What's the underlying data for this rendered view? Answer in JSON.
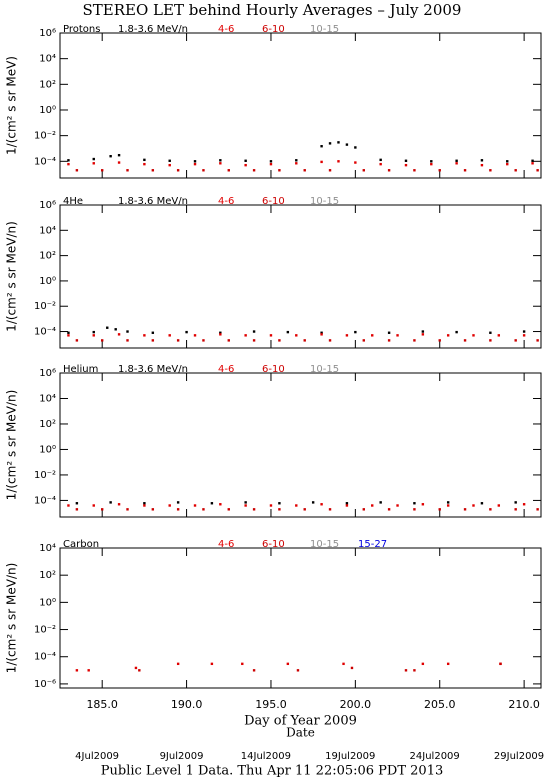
{
  "title": "STEREO LET behind Hourly Averages – July 2009",
  "footer": "Public Level 1 Data. Thu Apr 11 22:05:06 PDT 2013",
  "chart_data": [
    {
      "type": "scatter",
      "title": "Protons",
      "ylabel": "1/(cm² s sr MeV)",
      "log_y": true,
      "xlim": [
        182.5,
        211
      ],
      "ylim": [
        5e-06,
        1000000
      ],
      "yticks": [
        {
          "value": 1000000,
          "label": "10⁶"
        },
        {
          "value": 10000,
          "label": "10⁴"
        },
        {
          "value": 100,
          "label": "10²"
        },
        {
          "value": 1,
          "label": "10⁰"
        },
        {
          "value": 0.01,
          "label": "10⁻²"
        },
        {
          "value": 0.0001,
          "label": "10⁻⁴"
        }
      ],
      "xticks": [
        185,
        190,
        195,
        200,
        205,
        210
      ],
      "series": [
        {
          "name": "1.8-3.6 MeV/n",
          "color": "#000000",
          "x": [
            183,
            184.5,
            185.5,
            186,
            187.5,
            189,
            190.5,
            192,
            193.5,
            195,
            196.5,
            198,
            198.5,
            199,
            199.5,
            200,
            201.5,
            203,
            204.5,
            206,
            207.5,
            209,
            210.5
          ],
          "values": [
            0.00012,
            0.00015,
            0.00025,
            0.0003,
            0.00013,
            0.00011,
            0.0001,
            0.00012,
            0.00011,
            0.0001,
            0.00012,
            0.0015,
            0.0025,
            0.003,
            0.002,
            0.0012,
            0.00013,
            0.00011,
            0.0001,
            0.00011,
            0.00012,
            0.0001,
            0.00011
          ]
        },
        {
          "name": "4-6",
          "color": "#e00000",
          "x": [
            183,
            184.5,
            186,
            187.5,
            189,
            190.5,
            192,
            193.5,
            195,
            196.5,
            198,
            199,
            200,
            201.5,
            203,
            204.5,
            206,
            207.5,
            209,
            210.5
          ],
          "values": [
            6e-05,
            7e-05,
            8e-05,
            6e-05,
            5e-05,
            6e-05,
            7e-05,
            5e-05,
            6e-05,
            7e-05,
            9e-05,
            0.0001,
            8e-05,
            6e-05,
            5e-05,
            6e-05,
            7e-05,
            5e-05,
            6e-05,
            7e-05
          ]
        },
        {
          "name": "6-10",
          "color": "#cc0000",
          "x": [
            183.5,
            185,
            186.5,
            188,
            189.5,
            191,
            192.5,
            194,
            195.5,
            197,
            198.5,
            200.5,
            202,
            203.5,
            205,
            206.5,
            208,
            209.5,
            210.8
          ],
          "values": [
            2e-05,
            2e-05,
            2e-05,
            2e-05,
            2e-05,
            2e-05,
            2e-05,
            2e-05,
            2e-05,
            2e-05,
            2e-05,
            2e-05,
            2e-05,
            2e-05,
            2e-05,
            2e-05,
            2e-05,
            2e-05,
            2e-05
          ]
        },
        {
          "name": "10-15",
          "color": "#909090",
          "x": [],
          "values": []
        }
      ]
    },
    {
      "type": "scatter",
      "title": "4He",
      "ylabel": "1/(cm² s sr MeV/n)",
      "log_y": true,
      "xlim": [
        182.5,
        211
      ],
      "ylim": [
        5e-06,
        1000000
      ],
      "yticks": [
        {
          "value": 1000000,
          "label": "10⁶"
        },
        {
          "value": 10000,
          "label": "10⁴"
        },
        {
          "value": 100,
          "label": "10²"
        },
        {
          "value": 1,
          "label": "10⁰"
        },
        {
          "value": 0.01,
          "label": "10⁻²"
        },
        {
          "value": 0.0001,
          "label": "10⁻⁴"
        }
      ],
      "xticks": [
        185,
        190,
        195,
        200,
        205,
        210
      ],
      "series": [
        {
          "name": "1.8-3.6 MeV/n",
          "color": "#000000",
          "x": [
            183,
            184.5,
            185.3,
            185.8,
            186.5,
            188,
            190,
            192,
            194,
            196,
            198,
            200,
            202,
            204,
            206,
            208,
            210
          ],
          "values": [
            8e-05,
            9e-05,
            0.0002,
            0.00015,
            0.0001,
            8e-05,
            9e-05,
            8e-05,
            0.0001,
            9e-05,
            8e-05,
            9e-05,
            8e-05,
            0.0001,
            9e-05,
            8e-05,
            0.0001
          ]
        },
        {
          "name": "4-6",
          "color": "#e00000",
          "x": [
            183,
            184.5,
            186,
            187.5,
            189,
            190.5,
            192,
            193.5,
            195,
            196.5,
            198,
            199.5,
            201,
            202.5,
            204,
            205.5,
            207,
            208.5,
            210
          ],
          "values": [
            5e-05,
            5e-05,
            6e-05,
            5e-05,
            5e-05,
            5e-05,
            6e-05,
            5e-05,
            5e-05,
            5e-05,
            6e-05,
            5e-05,
            5e-05,
            5e-05,
            6e-05,
            5e-05,
            5e-05,
            5e-05,
            5e-05
          ]
        },
        {
          "name": "6-10",
          "color": "#cc0000",
          "x": [
            183.5,
            185,
            186.5,
            188,
            189.5,
            191,
            192.5,
            194,
            195.5,
            197,
            198.5,
            200.5,
            202,
            203.5,
            205,
            206.5,
            208,
            209.5,
            210.8
          ],
          "values": [
            2e-05,
            2e-05,
            2e-05,
            2e-05,
            2e-05,
            2e-05,
            2e-05,
            2e-05,
            2e-05,
            2e-05,
            2e-05,
            2e-05,
            2e-05,
            2e-05,
            2e-05,
            2e-05,
            2e-05,
            2e-05,
            2e-05
          ]
        },
        {
          "name": "10-15",
          "color": "#909090",
          "x": [],
          "values": []
        }
      ]
    },
    {
      "type": "scatter",
      "title": "Helium",
      "ylabel": "1/(cm² s sr MeV/n)",
      "log_y": true,
      "xlim": [
        182.5,
        211
      ],
      "ylim": [
        5e-06,
        1000000
      ],
      "yticks": [
        {
          "value": 1000000,
          "label": "10⁶"
        },
        {
          "value": 10000,
          "label": "10⁴"
        },
        {
          "value": 100,
          "label": "10²"
        },
        {
          "value": 1,
          "label": "10⁰"
        },
        {
          "value": 0.01,
          "label": "10⁻²"
        },
        {
          "value": 0.0001,
          "label": "10⁻⁴"
        }
      ],
      "xticks": [
        185,
        190,
        195,
        200,
        205,
        210
      ],
      "series": [
        {
          "name": "1.8-3.6 MeV/n",
          "color": "#000000",
          "x": [
            183.5,
            185.5,
            187.5,
            189.5,
            191.5,
            193.5,
            195.5,
            197.5,
            199.5,
            201.5,
            203.5,
            205.5,
            207.5,
            209.5
          ],
          "values": [
            6e-05,
            7e-05,
            6e-05,
            7e-05,
            6e-05,
            7e-05,
            6e-05,
            7e-05,
            6e-05,
            7e-05,
            6e-05,
            7e-05,
            6e-05,
            7e-05
          ]
        },
        {
          "name": "4-6",
          "color": "#e00000",
          "x": [
            183,
            184.5,
            186,
            187.5,
            189,
            190.5,
            192,
            193.5,
            195,
            196.5,
            198,
            199.5,
            201,
            202.5,
            204,
            205.5,
            207,
            208.5,
            210
          ],
          "values": [
            4e-05,
            4e-05,
            5e-05,
            4e-05,
            4e-05,
            4e-05,
            5e-05,
            4e-05,
            4e-05,
            4e-05,
            5e-05,
            4e-05,
            4e-05,
            4e-05,
            5e-05,
            4e-05,
            4e-05,
            4e-05,
            5e-05
          ]
        },
        {
          "name": "6-10",
          "color": "#cc0000",
          "x": [
            183.5,
            185,
            186.5,
            188,
            189.5,
            191,
            192.5,
            194,
            195.5,
            197,
            198.5,
            200.5,
            202,
            203.5,
            205,
            206.5,
            208,
            209.5,
            210.8
          ],
          "values": [
            2e-05,
            2e-05,
            2e-05,
            2e-05,
            2e-05,
            2e-05,
            2e-05,
            2e-05,
            2e-05,
            2e-05,
            2e-05,
            2e-05,
            2e-05,
            2e-05,
            2e-05,
            2e-05,
            2e-05,
            2e-05,
            2e-05
          ]
        },
        {
          "name": "10-15",
          "color": "#909090",
          "x": [],
          "values": []
        }
      ]
    },
    {
      "type": "scatter",
      "title": "Carbon",
      "ylabel": "1/(cm² s sr MeV/n)",
      "log_y": true,
      "xlabel": "Day of Year 2009",
      "date_title": "Date",
      "xlim": [
        182.5,
        211
      ],
      "ylim": [
        5e-07,
        10000
      ],
      "yticks": [
        {
          "value": 10000,
          "label": "10⁴"
        },
        {
          "value": 100,
          "label": "10²"
        },
        {
          "value": 1,
          "label": "10⁰"
        },
        {
          "value": 0.01,
          "label": "10⁻²"
        },
        {
          "value": 0.0001,
          "label": "10⁻⁴"
        },
        {
          "value": 1e-06,
          "label": "10⁻⁶"
        }
      ],
      "xticks": [
        {
          "value": 185,
          "label": "185.0"
        },
        {
          "value": 190,
          "label": "190.0"
        },
        {
          "value": 195,
          "label": "195.0"
        },
        {
          "value": 200,
          "label": "200.0"
        },
        {
          "value": 205,
          "label": "205.0"
        },
        {
          "value": 210,
          "label": "210.0"
        }
      ],
      "date_ticks": [
        {
          "value": 184.7,
          "label": "4Jul2009"
        },
        {
          "value": 189.7,
          "label": "9Jul2009"
        },
        {
          "value": 194.7,
          "label": "14Jul2009"
        },
        {
          "value": 199.7,
          "label": "19Jul2009"
        },
        {
          "value": 204.7,
          "label": "24Jul2009"
        },
        {
          "value": 209.7,
          "label": "29Jul2009"
        }
      ],
      "series": [
        {
          "name": "4-6",
          "color": "#e00000",
          "x": [
            183.5,
            184.2,
            187,
            189.5,
            191.5,
            193.3,
            196,
            199.3,
            204,
            205.5,
            208.6
          ],
          "values": [
            1e-05,
            1e-05,
            1.5e-05,
            3e-05,
            3e-05,
            3e-05,
            3e-05,
            3e-05,
            3e-05,
            3e-05,
            3e-05
          ]
        },
        {
          "name": "6-10",
          "color": "#cc0000",
          "x": [
            187.2,
            194,
            196.6,
            199.8,
            203,
            203.5,
            208.6
          ],
          "values": [
            1e-05,
            1e-05,
            1e-05,
            1.5e-05,
            1e-05,
            1e-05,
            3e-05
          ]
        },
        {
          "name": "10-15",
          "color": "#909090",
          "x": [],
          "values": []
        },
        {
          "name": "15-27",
          "color": "#0000e0",
          "x": [],
          "values": []
        }
      ]
    }
  ]
}
